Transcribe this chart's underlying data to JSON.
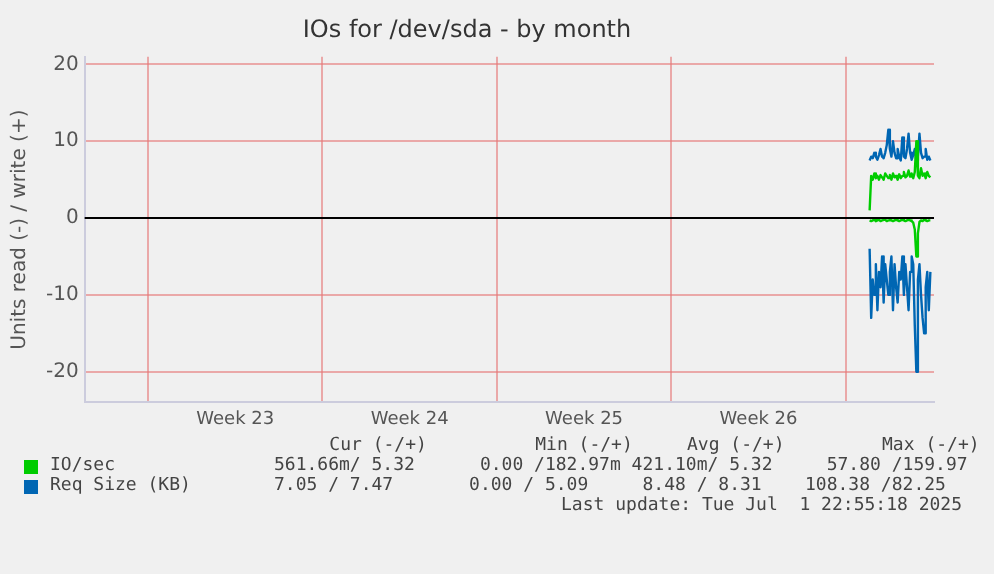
{
  "chart_data": {
    "type": "line",
    "title": "IOs for /dev/sda - by month",
    "ylabel": "Units read (-) / write (+)",
    "x": [
      "2025-06-30T23:00",
      "2025-07-01T00:30",
      "2025-07-01T02:00",
      "2025-07-01T03:30",
      "2025-07-01T05:00",
      "2025-07-01T06:30",
      "2025-07-01T08:00",
      "2025-07-01T09:30",
      "2025-07-01T11:00",
      "2025-07-01T12:30",
      "2025-07-01T14:00",
      "2025-07-01T15:30",
      "2025-07-01T17:00",
      "2025-07-01T18:30",
      "2025-07-01T20:00",
      "2025-07-01T21:30",
      "2025-07-01T23:00",
      "2025-07-02T00:30",
      "2025-07-02T02:00",
      "2025-07-02T03:30",
      "2025-07-02T05:00",
      "2025-07-02T06:30",
      "2025-07-02T08:00",
      "2025-07-02T09:30",
      "2025-07-02T11:00",
      "2025-07-02T12:30",
      "2025-07-02T14:00",
      "2025-07-02T15:30",
      "2025-07-02T17:00",
      "2025-07-02T18:30",
      "2025-07-02T20:00",
      "2025-07-02T21:30",
      "2025-07-02T23:00",
      "2025-07-03T00:30",
      "2025-07-03T02:00",
      "2025-07-03T03:30",
      "2025-07-03T05:00",
      "2025-07-03T06:30",
      "2025-07-03T08:00",
      "2025-07-03T09:30"
    ],
    "series": [
      {
        "color": "#00cc00",
        "values": [
          -0.3,
          -0.4,
          -0.3,
          -0.2,
          -0.4,
          -0.3,
          -0.2,
          -0.4,
          -0.3,
          -0.3,
          -0.2,
          -0.4,
          -0.3,
          -0.2,
          -0.3,
          -0.4,
          -0.3,
          -0.2,
          -0.3,
          -0.4,
          -0.3,
          -0.2,
          -0.3,
          -0.4,
          -0.3,
          -0.2,
          -0.3,
          -0.4,
          -0.6,
          -1.5,
          -5,
          -2,
          -0.5,
          -0.3,
          -0.4,
          -0.2,
          -0.3,
          -0.4,
          -0.3,
          -0.3
        ]
      },
      {
        "name": "IO/sec",
        "color": "#00cc00",
        "values": [
          1,
          5.5,
          5,
          5.8,
          5.2,
          5.5,
          5,
          5.6,
          5.3,
          5,
          5.8,
          5.5,
          5.2,
          5.6,
          5,
          5.8,
          5.3,
          5.5,
          5,
          5.7,
          5.2,
          5.5,
          6,
          5.3,
          5.5,
          6.2,
          5.4,
          5.8,
          5.2,
          6,
          10,
          5.5,
          5.2,
          6.5,
          5.5,
          5.8,
          5.2,
          6,
          5.5,
          5.3
        ]
      },
      {
        "color": "#0066b3",
        "values": [
          -4,
          -13,
          -8,
          -10,
          -6,
          -12,
          -7,
          -9,
          -5,
          -11,
          -6,
          -8,
          -10,
          -7,
          -5,
          -12,
          -6,
          -9,
          -11,
          -7,
          -8,
          -5,
          -10,
          -6,
          -9,
          -12,
          -7,
          -5,
          -6,
          -14,
          -20,
          -8,
          -6,
          -10,
          -13,
          -15,
          -9,
          -7,
          -12,
          -7
        ]
      },
      {
        "name": "Req Size (KB)",
        "color": "#0066b3",
        "values": [
          7.5,
          8,
          7.8,
          8.5,
          8,
          7.6,
          8.2,
          9,
          8,
          7.8,
          8.5,
          9.5,
          11.5,
          9,
          8,
          10,
          8.5,
          7.8,
          9,
          8,
          7.5,
          10.5,
          8,
          7.8,
          9,
          11,
          8.5,
          7.6,
          8.2,
          9,
          7.5,
          8,
          11,
          8.5,
          7.8,
          8,
          9,
          7.6,
          8,
          7.5
        ]
      }
    ],
    "xlim": [
      "2025-05-30T11:00",
      "2025-07-03T13:00"
    ],
    "xticks": [
      {
        "value": "2025-06-02T00:00",
        "label": null
      },
      {
        "value": "2025-06-05T12:00",
        "label": "Week 23"
      },
      {
        "value": "2025-06-09T00:00",
        "label": null
      },
      {
        "value": "2025-06-12T12:00",
        "label": "Week 24"
      },
      {
        "value": "2025-06-16T00:00",
        "label": null
      },
      {
        "value": "2025-06-19T12:00",
        "label": "Week 25"
      },
      {
        "value": "2025-06-23T00:00",
        "label": null
      },
      {
        "value": "2025-06-26T12:00",
        "label": "Week 26"
      },
      {
        "value": "2025-06-30T00:00",
        "label": null
      }
    ],
    "ylim": [
      -24,
      21
    ],
    "yticks": [
      -20,
      -10,
      0,
      10,
      20
    ],
    "grid": true,
    "legend": "bottom",
    "marker": "none",
    "line_style": "solid",
    "ref_lines": [
      {
        "axis": "y",
        "value": 0,
        "color": "#000000"
      }
    ],
    "annotations": [
      "    Cur (-/+)          Min (-/+)     Avg (-/+)         Max (-/+)",
      "561.66m/ 5.32      0.00 /182.97m 421.10m/ 5.32     57.80 /159.97",
      "7.05 / 7.47       0.00 / 5.09     8.48 / 8.31    108.38 /82.25",
      "Last update: Tue Jul  1 22:55:18 2025"
    ]
  }
}
